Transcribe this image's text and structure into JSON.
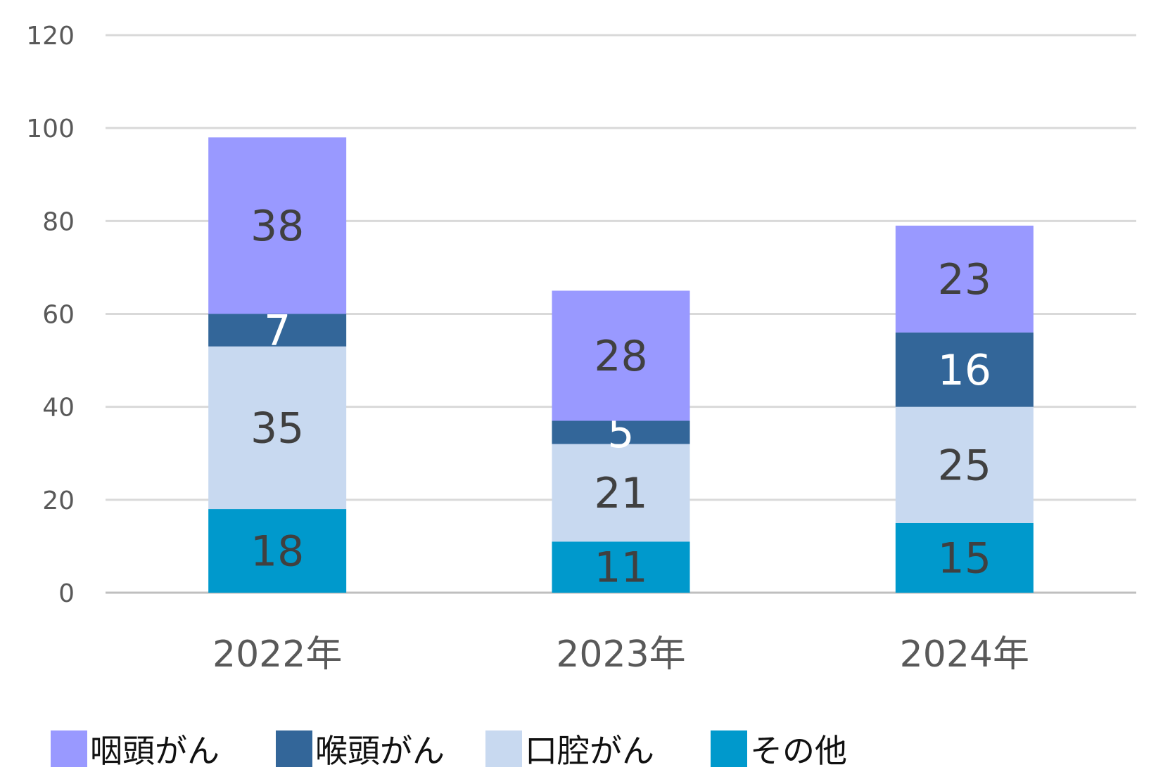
{
  "chart_data": {
    "type": "bar",
    "stacked": true,
    "categories": [
      "2022年",
      "2023年",
      "2024年"
    ],
    "series": [
      {
        "name": "その他",
        "values": [
          18,
          11,
          15
        ],
        "color": "#0099CC",
        "label_color": "#404040"
      },
      {
        "name": "口腔がん",
        "values": [
          35,
          21,
          25
        ],
        "color": "#C8D9F0",
        "label_color": "#404040"
      },
      {
        "name": "喉頭がん",
        "values": [
          7,
          5,
          16
        ],
        "color": "#336699",
        "label_color": "#FFFFFF"
      },
      {
        "name": "咽頭がん",
        "values": [
          38,
          28,
          23
        ],
        "color": "#9999FF",
        "label_color": "#404040"
      }
    ],
    "legend_order": [
      "咽頭がん",
      "喉頭がん",
      "口腔がん",
      "その他"
    ],
    "yticks": [
      0,
      20,
      40,
      60,
      80,
      100,
      120
    ],
    "ylim": [
      0,
      120
    ],
    "grid": true,
    "legend_position": "bottom",
    "title": "",
    "xlabel": "",
    "ylabel": ""
  }
}
